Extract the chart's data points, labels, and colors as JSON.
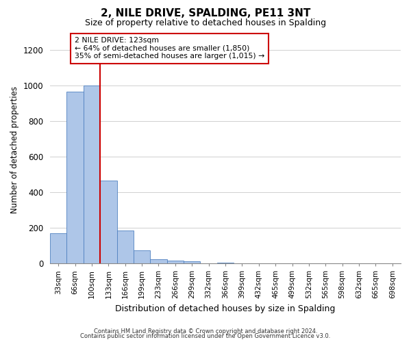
{
  "title": "2, NILE DRIVE, SPALDING, PE11 3NT",
  "subtitle": "Size of property relative to detached houses in Spalding",
  "xlabel": "Distribution of detached houses by size in Spalding",
  "ylabel": "Number of detached properties",
  "bar_labels": [
    "33sqm",
    "66sqm",
    "100sqm",
    "133sqm",
    "166sqm",
    "199sqm",
    "233sqm",
    "266sqm",
    "299sqm",
    "332sqm",
    "366sqm",
    "399sqm",
    "432sqm",
    "465sqm",
    "499sqm",
    "532sqm",
    "565sqm",
    "598sqm",
    "632sqm",
    "665sqm",
    "698sqm"
  ],
  "bar_values": [
    170,
    965,
    1000,
    465,
    185,
    75,
    25,
    15,
    10,
    0,
    5,
    0,
    0,
    0,
    0,
    0,
    0,
    0,
    0,
    0,
    0
  ],
  "bar_color": "#aec6e8",
  "bar_edge_color": "#5080c0",
  "ylim": [
    0,
    1280
  ],
  "yticks": [
    0,
    200,
    400,
    600,
    800,
    1000,
    1200
  ],
  "vline_color": "#cc0000",
  "annotation_title": "2 NILE DRIVE: 123sqm",
  "annotation_line1": "← 64% of detached houses are smaller (1,850)",
  "annotation_line2": "35% of semi-detached houses are larger (1,015) →",
  "annotation_box_color": "#ffffff",
  "annotation_box_edge": "#cc0000",
  "footer1": "Contains HM Land Registry data © Crown copyright and database right 2024.",
  "footer2": "Contains public sector information licensed under the Open Government Licence v3.0.",
  "background_color": "#ffffff",
  "grid_color": "#d0d0d0"
}
